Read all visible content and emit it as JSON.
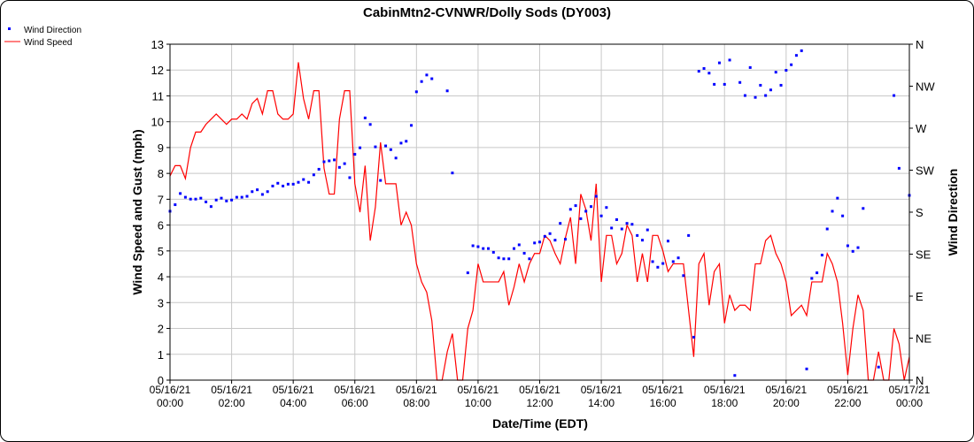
{
  "chart_data": {
    "type": "line",
    "title": "CabinMtn2-CVNWR/Dolly Sods (DY003)",
    "xlabel": "Date/Time (EDT)",
    "ylabel": "Wind Speed and Gust (mph)",
    "y2label": "Wind Direction",
    "ylim": [
      0,
      13
    ],
    "y_ticks": [
      "0",
      "1",
      "2",
      "3",
      "4",
      "5",
      "6",
      "7",
      "8",
      "9",
      "10",
      "11",
      "12",
      "13"
    ],
    "y2lim": [
      0,
      360
    ],
    "y2_ticks": [
      "N",
      "NE",
      "E",
      "SE",
      "S",
      "SW",
      "W",
      "NW",
      "N"
    ],
    "x_ticks": [
      [
        "05/16/21",
        "00:00"
      ],
      [
        "05/16/21",
        "02:00"
      ],
      [
        "05/16/21",
        "04:00"
      ],
      [
        "05/16/21",
        "06:00"
      ],
      [
        "05/16/21",
        "08:00"
      ],
      [
        "05/16/21",
        "10:00"
      ],
      [
        "05/16/21",
        "12:00"
      ],
      [
        "05/16/21",
        "14:00"
      ],
      [
        "05/16/21",
        "16:00"
      ],
      [
        "05/16/21",
        "18:00"
      ],
      [
        "05/16/21",
        "20:00"
      ],
      [
        "05/16/21",
        "22:00"
      ],
      [
        "05/17/21",
        "00:00"
      ]
    ],
    "grid": true,
    "legend_placement": "top-left",
    "x": [
      "00:00",
      "00:10",
      "00:20",
      "00:30",
      "00:40",
      "00:50",
      "01:00",
      "01:10",
      "01:20",
      "01:30",
      "01:40",
      "01:50",
      "02:00",
      "02:10",
      "02:20",
      "02:30",
      "02:40",
      "02:50",
      "03:00",
      "03:10",
      "03:20",
      "03:30",
      "03:40",
      "03:50",
      "04:00",
      "04:10",
      "04:20",
      "04:30",
      "04:40",
      "04:50",
      "05:00",
      "05:10",
      "05:20",
      "05:30",
      "05:40",
      "05:50",
      "06:00",
      "06:10",
      "06:20",
      "06:30",
      "06:40",
      "06:50",
      "07:00",
      "07:10",
      "07:20",
      "07:30",
      "07:40",
      "07:50",
      "08:00",
      "08:10",
      "08:20",
      "08:30",
      "08:40",
      "08:50",
      "09:00",
      "09:10",
      "09:20",
      "09:30",
      "09:40",
      "09:50",
      "10:00",
      "10:10",
      "10:20",
      "10:30",
      "10:40",
      "10:50",
      "11:00",
      "11:10",
      "11:20",
      "11:30",
      "11:40",
      "11:50",
      "12:00",
      "12:10",
      "12:20",
      "12:30",
      "12:40",
      "12:50",
      "13:00",
      "13:10",
      "13:20",
      "13:30",
      "13:40",
      "13:50",
      "14:00",
      "14:10",
      "14:20",
      "14:30",
      "14:40",
      "14:50",
      "15:00",
      "15:10",
      "15:20",
      "15:30",
      "15:40",
      "15:50",
      "16:00",
      "16:10",
      "16:20",
      "16:30",
      "16:40",
      "16:50",
      "17:00",
      "17:10",
      "17:20",
      "17:30",
      "17:40",
      "17:50",
      "18:00",
      "18:10",
      "18:20",
      "18:30",
      "18:40",
      "18:50",
      "19:00",
      "19:10",
      "19:20",
      "19:30",
      "19:40",
      "19:50",
      "20:00",
      "20:10",
      "20:20",
      "20:30",
      "20:40",
      "20:50",
      "21:00",
      "21:10",
      "21:20",
      "21:30",
      "21:40",
      "21:50",
      "22:00",
      "22:10",
      "22:20",
      "22:30",
      "22:40",
      "22:50",
      "23:00",
      "23:10",
      "23:20",
      "23:30",
      "23:40",
      "23:50",
      "24:00"
    ],
    "series": [
      {
        "name": "Wind Speed",
        "axis": "left",
        "style": "line",
        "color": "#ff0000",
        "values": [
          7.9,
          8.3,
          8.3,
          7.8,
          9.0,
          9.6,
          9.6,
          9.9,
          10.1,
          10.3,
          10.1,
          9.9,
          10.1,
          10.1,
          10.3,
          10.1,
          10.7,
          10.9,
          10.3,
          11.2,
          11.2,
          10.3,
          10.1,
          10.1,
          10.3,
          12.3,
          10.9,
          10.1,
          11.2,
          11.2,
          8.2,
          7.2,
          7.2,
          10.1,
          11.2,
          11.2,
          7.6,
          6.5,
          8.3,
          5.4,
          6.7,
          9.2,
          7.6,
          7.6,
          7.6,
          6.0,
          6.5,
          6.0,
          4.5,
          3.8,
          3.4,
          2.3,
          0,
          0,
          1.1,
          1.8,
          0,
          0,
          2.0,
          2.7,
          4.5,
          3.8,
          3.8,
          3.8,
          3.8,
          4.2,
          2.9,
          3.6,
          4.5,
          3.8,
          4.5,
          4.9,
          4.9,
          5.6,
          5.4,
          4.9,
          4.5,
          5.5,
          6.3,
          4.5,
          7.2,
          6.6,
          5.4,
          7.6,
          3.8,
          5.6,
          5.6,
          4.5,
          4.9,
          6.0,
          5.6,
          3.8,
          4.9,
          3.8,
          5.6,
          5.6,
          5.0,
          4.2,
          4.5,
          4.5,
          4.5,
          2.7,
          0.9,
          4.5,
          4.9,
          2.9,
          4.2,
          4.5,
          2.2,
          3.3,
          2.7,
          2.9,
          2.9,
          2.7,
          4.5,
          4.5,
          5.4,
          5.6,
          4.9,
          4.5,
          3.8,
          2.5,
          2.7,
          2.9,
          2.5,
          3.8,
          3.8,
          3.8,
          4.9,
          4.5,
          3.8,
          2.2,
          0.2,
          2.0,
          3.3,
          2.7,
          0,
          0,
          1.1,
          0,
          0,
          2.0,
          1.4,
          0,
          0.9
        ]
      },
      {
        "name": "Wind Direction",
        "axis": "right",
        "style": "points",
        "color": "#0000ff",
        "values": [
          181,
          188,
          200,
          196,
          194,
          194,
          195,
          191,
          186,
          193,
          195,
          192,
          193,
          196,
          196,
          197,
          202,
          204,
          199,
          202,
          208,
          211,
          208,
          210,
          210,
          212,
          215,
          212,
          220,
          226,
          234,
          235,
          236,
          228,
          232,
          217,
          242,
          249,
          281,
          274,
          250,
          214,
          251,
          247,
          238,
          254,
          256,
          273,
          309,
          320,
          327,
          323,
          null,
          null,
          310,
          222,
          null,
          null,
          115,
          144,
          143,
          141,
          141,
          137,
          131,
          130,
          130,
          141,
          145,
          136,
          130,
          147,
          148,
          154,
          157,
          150,
          168,
          151,
          183,
          187,
          173,
          181,
          186,
          197,
          176,
          185,
          163,
          172,
          162,
          168,
          167,
          155,
          150,
          161,
          127,
          121,
          125,
          149,
          127,
          131,
          112,
          155,
          46,
          331,
          334,
          329,
          317,
          340,
          317,
          343,
          5,
          319,
          305,
          335,
          303,
          316,
          305,
          311,
          330,
          316,
          332,
          338,
          348,
          353,
          12,
          109,
          115,
          134,
          162,
          181,
          195,
          176,
          144,
          138,
          142,
          184,
          null,
          null,
          14,
          null,
          null,
          305,
          227,
          null,
          198
        ]
      }
    ]
  }
}
